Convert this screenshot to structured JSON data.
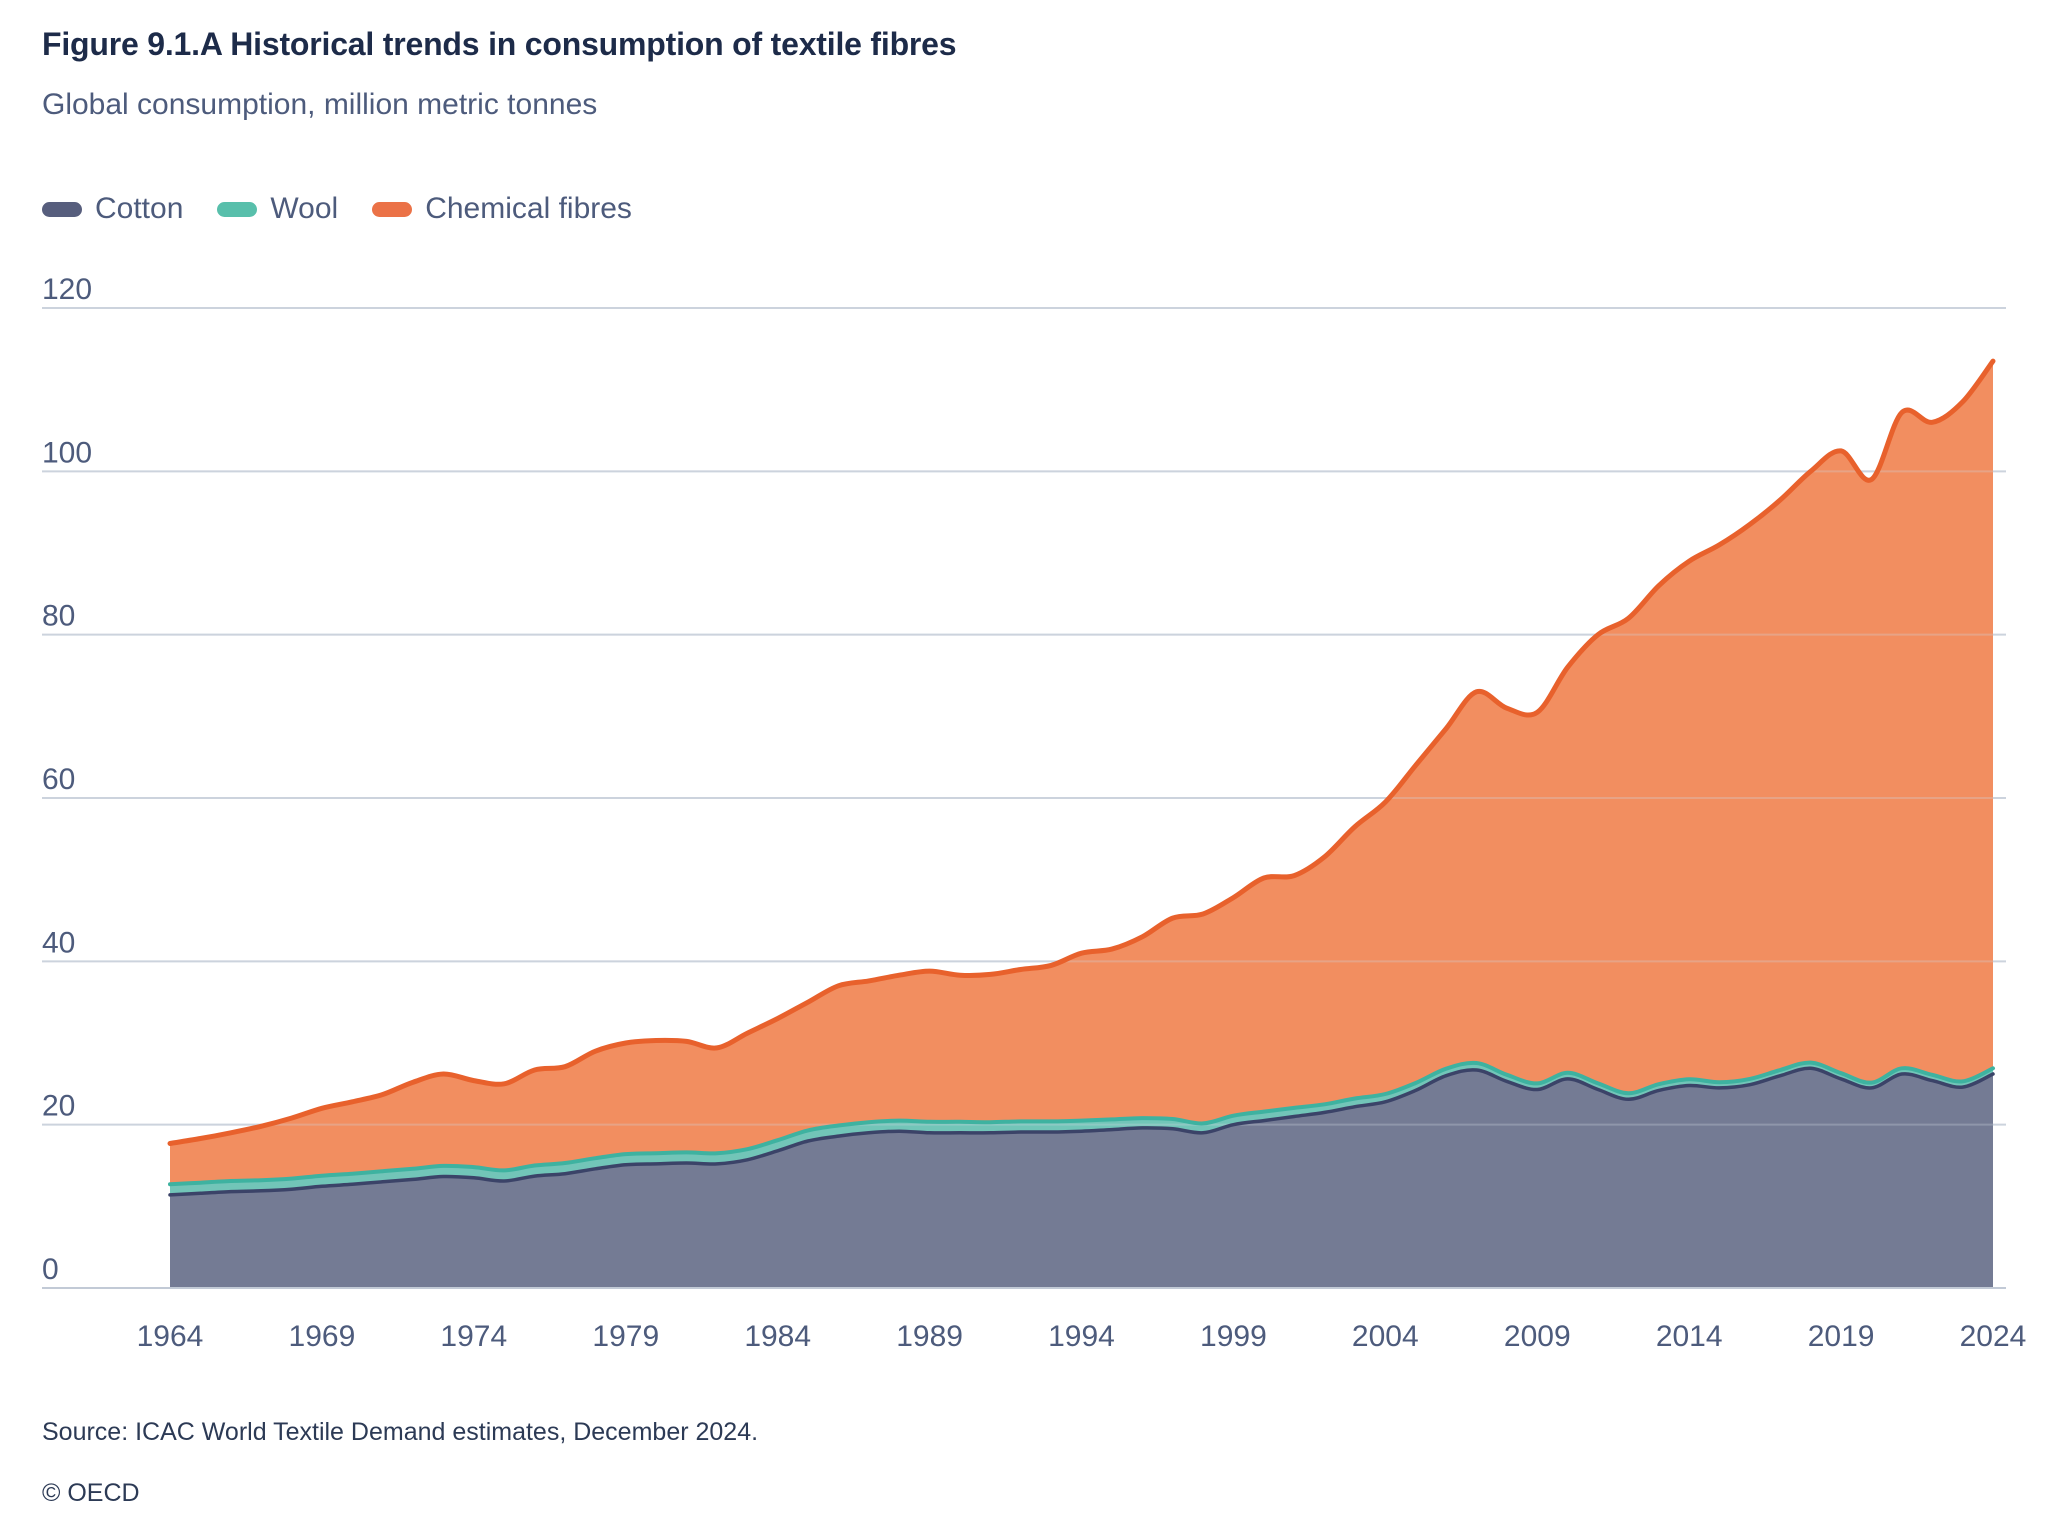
{
  "header": {
    "title": "Figure 9.1.A Historical trends in consumption of textile fibres",
    "subtitle": "Global consumption, million metric tonnes"
  },
  "legend": [
    {
      "label": "Cotton",
      "color": "#575e7d"
    },
    {
      "label": "Wool",
      "color": "#58bfab"
    },
    {
      "label": "Chemical fibres",
      "color": "#eb7247"
    }
  ],
  "footer": {
    "source": "Source: ICAC World Textile Demand estimates, December 2024.",
    "copyright": "© OECD"
  },
  "colors": {
    "grid": "#ccd3dd",
    "axis": "#c2cad6",
    "tick": "#4d5b7c",
    "title": "#1d2b49",
    "subtitle": "#4d5b7c",
    "source_text": "#2c3a55",
    "background": "#ffffff"
  },
  "chart_data": {
    "type": "area",
    "stacked": true,
    "title": "Figure 9.1.A Historical trends in consumption of textile fibres",
    "subtitle": "Global consumption, million metric tonnes",
    "xlabel": "",
    "ylabel": "million metric tonnes",
    "ylim": [
      0,
      120
    ],
    "grid": "horizontal",
    "legend_position": "top-left",
    "y_ticks": [
      0,
      20,
      40,
      60,
      80,
      100,
      120
    ],
    "x_ticks": [
      1964,
      1969,
      1974,
      1979,
      1984,
      1989,
      1994,
      1999,
      2004,
      2009,
      2014,
      2019,
      2024
    ],
    "years": [
      1964,
      1965,
      1966,
      1967,
      1968,
      1969,
      1970,
      1971,
      1972,
      1973,
      1974,
      1975,
      1976,
      1977,
      1978,
      1979,
      1980,
      1981,
      1982,
      1983,
      1984,
      1985,
      1986,
      1987,
      1988,
      1989,
      1990,
      1991,
      1992,
      1993,
      1994,
      1995,
      1996,
      1997,
      1998,
      1999,
      2000,
      2001,
      2002,
      2003,
      2004,
      2005,
      2006,
      2007,
      2008,
      2009,
      2010,
      2011,
      2012,
      2013,
      2014,
      2015,
      2016,
      2017,
      2018,
      2019,
      2020,
      2021,
      2022,
      2023,
      2024
    ],
    "series": [
      {
        "name": "Cotton",
        "fill": "#747b94",
        "line": "#3b4368",
        "values": [
          11.4,
          11.6,
          11.8,
          11.9,
          12.1,
          12.45,
          12.7,
          13.0,
          13.3,
          13.65,
          13.5,
          13.1,
          13.7,
          14.0,
          14.6,
          15.1,
          15.2,
          15.3,
          15.2,
          15.7,
          16.8,
          18.0,
          18.6,
          19.0,
          19.2,
          19.0,
          19.0,
          19.0,
          19.1,
          19.1,
          19.2,
          19.4,
          19.6,
          19.5,
          19.0,
          20.0,
          20.5,
          21.0,
          21.5,
          22.2,
          22.8,
          24.2,
          26.0,
          26.7,
          25.3,
          24.3,
          25.6,
          24.3,
          23.1,
          24.2,
          24.8,
          24.5,
          24.9,
          26.0,
          26.9,
          25.6,
          24.5,
          26.2,
          25.4,
          24.6,
          26.2
        ]
      },
      {
        "name": "Wool",
        "fill": "#72c5b8",
        "line": "#3eb2a0",
        "values": [
          1.3,
          1.3,
          1.3,
          1.3,
          1.3,
          1.3,
          1.3,
          1.3,
          1.3,
          1.3,
          1.3,
          1.3,
          1.3,
          1.3,
          1.3,
          1.3,
          1.3,
          1.3,
          1.3,
          1.3,
          1.3,
          1.3,
          1.3,
          1.3,
          1.3,
          1.35,
          1.35,
          1.3,
          1.3,
          1.3,
          1.3,
          1.25,
          1.2,
          1.2,
          1.15,
          1.1,
          1.1,
          1.05,
          1.0,
          1.0,
          0.95,
          0.9,
          0.85,
          0.85,
          0.8,
          0.75,
          0.75,
          0.75,
          0.75,
          0.75,
          0.75,
          0.7,
          0.7,
          0.7,
          0.7,
          0.7,
          0.65,
          0.7,
          0.7,
          0.7,
          0.7
        ]
      },
      {
        "name": "Chemical fibres",
        "fill": "#f28e60",
        "line": "#e8612c",
        "values": [
          5.0,
          5.4,
          5.9,
          6.6,
          7.4,
          8.25,
          8.8,
          9.4,
          10.6,
          11.25,
          10.6,
          10.6,
          11.7,
          11.8,
          13.1,
          13.6,
          13.8,
          13.6,
          12.9,
          14.2,
          14.9,
          15.7,
          17.1,
          17.3,
          17.8,
          18.45,
          17.95,
          18.1,
          18.6,
          19.1,
          20.5,
          20.85,
          22.2,
          24.6,
          25.65,
          26.7,
          28.6,
          28.45,
          30.3,
          33.3,
          35.75,
          38.9,
          41.65,
          45.45,
          44.9,
          45.45,
          49.65,
          54.95,
          58.15,
          61.05,
          63.45,
          65.8,
          67.9,
          69.8,
          72.4,
          76.2,
          73.85,
          80.3,
          79.9,
          83.2,
          86.6
        ]
      }
    ]
  }
}
